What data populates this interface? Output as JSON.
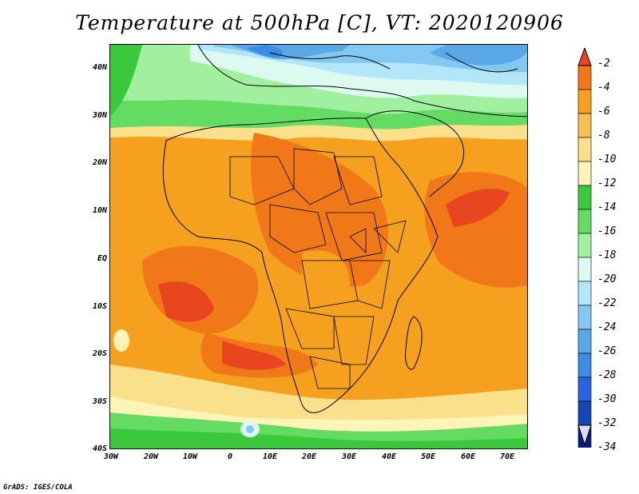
{
  "title": "Temperature at 500hPa [C], VT: 2020120906",
  "credit": "GrADS: IGES/COLA",
  "map": {
    "lon_ticks": [
      "30W",
      "20W",
      "10W",
      "0",
      "10E",
      "20E",
      "30E",
      "40E",
      "50E",
      "60E",
      "70E"
    ],
    "lat_ticks": [
      "40N",
      "30N",
      "20N",
      "10N",
      "EQ",
      "10S",
      "20S",
      "30S",
      "40S"
    ]
  },
  "colorbar": {
    "labels": [
      "-2",
      "-4",
      "-6",
      "-8",
      "-10",
      "-12",
      "-14",
      "-16",
      "-18",
      "-20",
      "-22",
      "-24",
      "-26",
      "-28",
      "-30",
      "-32",
      "-34"
    ],
    "colors": [
      "#e8461e",
      "#f07818",
      "#f5a01e",
      "#f8c050",
      "#fbe08c",
      "#fdf4b8",
      "#3cc83c",
      "#64dc64",
      "#a0f0a0",
      "#dcfaf0",
      "#b4e6fa",
      "#82c8f0",
      "#5aa8e6",
      "#3c8ce6",
      "#2864dc",
      "#1446b4",
      "#0a1e78"
    ]
  },
  "chart_data": {
    "type": "heatmap",
    "title": "Temperature at 500hPa [C], VT: 2020120906",
    "xlabel": "",
    "ylabel": "",
    "x_ticks": [
      "30W",
      "20W",
      "10W",
      "0",
      "10E",
      "20E",
      "30E",
      "40E",
      "50E",
      "60E",
      "70E"
    ],
    "y_ticks": [
      "40N",
      "30N",
      "20N",
      "10N",
      "EQ",
      "10S",
      "20S",
      "30S",
      "40S"
    ],
    "xlim": [
      -30,
      75
    ],
    "ylim": [
      -40,
      45
    ],
    "colorbar_levels": [
      -2,
      -4,
      -6,
      -8,
      -10,
      -12,
      -14,
      -16,
      -18,
      -20,
      -22,
      -24,
      -26,
      -28,
      -30,
      -32,
      -34
    ]
  }
}
